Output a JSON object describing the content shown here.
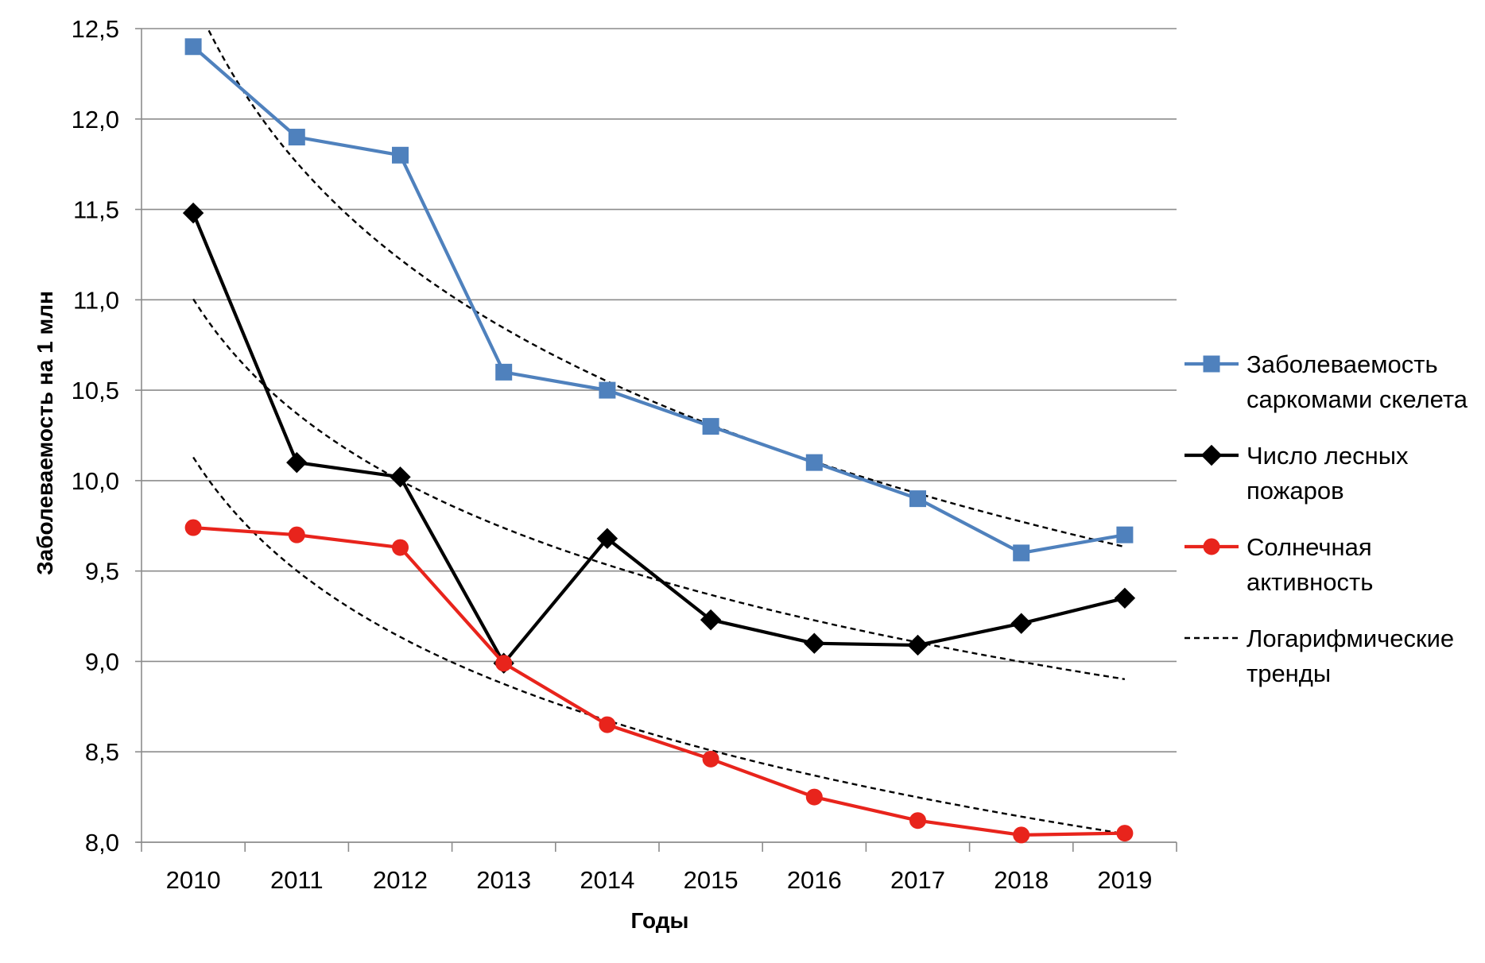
{
  "chart_data": {
    "type": "line",
    "xlabel": "Годы",
    "ylabel": "Заболеваемость на 1 млн",
    "x": [
      "2010",
      "2011",
      "2012",
      "2013",
      "2014",
      "2015",
      "2016",
      "2017",
      "2018",
      "2019"
    ],
    "ylim": [
      8.0,
      12.5
    ],
    "y_ticks": [
      "8,0",
      "8,5",
      "9,0",
      "9,5",
      "10,0",
      "10,5",
      "11,0",
      "11,5",
      "12,0",
      "12,5"
    ],
    "grid": true,
    "legend_position": "right",
    "series": [
      {
        "name": "Заболеваемость саркомами скелета",
        "name_lines": [
          "Заболеваемость",
          "саркомами скелета"
        ],
        "color": "#4F81BD",
        "marker": "square",
        "values": [
          12.4,
          11.9,
          11.8,
          10.6,
          10.5,
          10.3,
          10.1,
          9.9,
          9.6,
          9.7
        ]
      },
      {
        "name": "Число лесных пожаров",
        "name_lines": [
          "Число лесных",
          "пожаров"
        ],
        "color": "#000000",
        "marker": "diamond",
        "values": [
          11.48,
          10.1,
          10.02,
          8.99,
          9.68,
          9.23,
          9.1,
          9.09,
          9.21,
          9.35
        ]
      },
      {
        "name": "Солнечная активность",
        "name_lines": [
          "Солнечная",
          "активность"
        ],
        "color": "#E8241C",
        "marker": "circle",
        "values": [
          9.74,
          9.7,
          9.63,
          8.99,
          8.65,
          8.46,
          8.25,
          8.12,
          8.04,
          8.05
        ]
      }
    ],
    "trendlines": {
      "name": "Логарифмические тренды",
      "name_lines": [
        "Логарифмические",
        "тренды"
      ],
      "color": "#000000",
      "style": "dashed",
      "kind": "logarithmic"
    }
  }
}
